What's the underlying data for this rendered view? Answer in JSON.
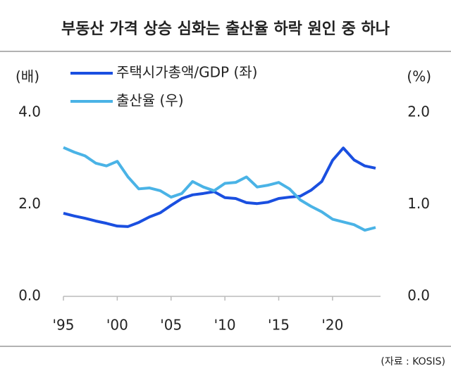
{
  "chart_data": {
    "type": "line",
    "title": "부동산 가격 상승 심화는 출산율 하락 원인 중 하나",
    "y_label": "(배)",
    "y2_label": "(%)",
    "source": "(자료 : KOSIS)",
    "x": [
      1995,
      1996,
      1997,
      1998,
      1999,
      2000,
      2001,
      2002,
      2003,
      2004,
      2005,
      2006,
      2007,
      2008,
      2009,
      2010,
      2011,
      2012,
      2013,
      2014,
      2015,
      2016,
      2017,
      2018,
      2019,
      2020,
      2021,
      2022,
      2023,
      2024
    ],
    "series": [
      {
        "name": "주택시가총액/GDP (좌)",
        "color": "#1a4fe0",
        "axis": "y",
        "values": [
          1.81,
          1.75,
          1.7,
          1.64,
          1.59,
          1.53,
          1.52,
          1.61,
          1.73,
          1.82,
          1.98,
          2.13,
          2.21,
          2.24,
          2.28,
          2.15,
          2.13,
          2.04,
          2.02,
          2.05,
          2.13,
          2.16,
          2.18,
          2.31,
          2.5,
          2.96,
          3.23,
          2.97,
          2.84,
          2.79
        ]
      },
      {
        "name": "출산율 (우)",
        "color": "#4ab3e6",
        "axis": "y2",
        "values": [
          1.62,
          1.57,
          1.53,
          1.45,
          1.42,
          1.47,
          1.3,
          1.17,
          1.18,
          1.15,
          1.08,
          1.12,
          1.25,
          1.19,
          1.15,
          1.23,
          1.24,
          1.3,
          1.19,
          1.21,
          1.24,
          1.17,
          1.05,
          0.98,
          0.92,
          0.84,
          0.81,
          0.78,
          0.72,
          0.75
        ]
      }
    ],
    "xlim": [
      1995,
      2024
    ],
    "xticks": [
      {
        "value": 1995,
        "label": "'95"
      },
      {
        "value": 2000,
        "label": "'00"
      },
      {
        "value": 2005,
        "label": "'05"
      },
      {
        "value": 2010,
        "label": "'10"
      },
      {
        "value": 2015,
        "label": "'15"
      },
      {
        "value": 2020,
        "label": "'20"
      }
    ],
    "ylim": [
      0,
      4
    ],
    "yticks": [
      {
        "value": 0,
        "label": "0.0"
      },
      {
        "value": 2,
        "label": "2.0"
      },
      {
        "value": 4,
        "label": "4.0"
      }
    ],
    "y2lim": [
      0,
      2
    ],
    "y2ticks": [
      {
        "value": 0,
        "label": "0.0"
      },
      {
        "value": 1,
        "label": "1.0"
      },
      {
        "value": 2,
        "label": "2.0"
      }
    ]
  }
}
